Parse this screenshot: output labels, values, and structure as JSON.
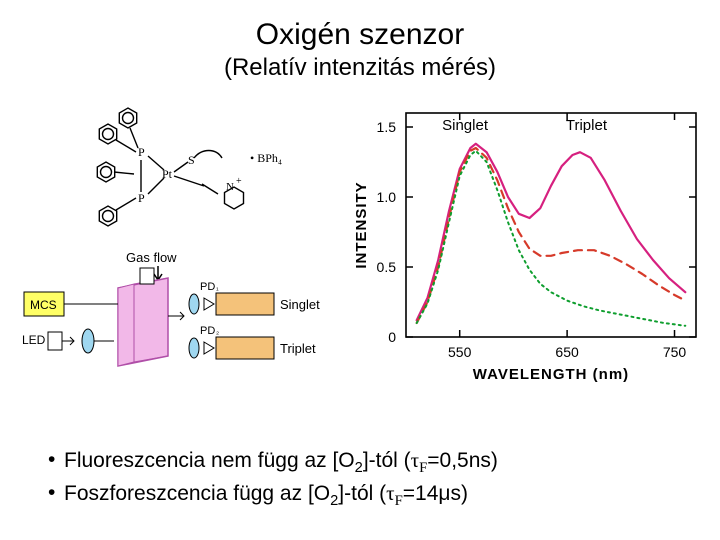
{
  "header": {
    "title": "Oxigén szenzor",
    "subtitle": "(Relatív intenzitás mérés)"
  },
  "molecule": {
    "counterion": "BPh₄",
    "metal": "Pt",
    "ligands": [
      "Ph",
      "Ph",
      "Ph",
      "Ph"
    ],
    "bridge_atoms": [
      "P",
      "P",
      "S"
    ],
    "pyridyl": "N⁺",
    "stroke": "#000000"
  },
  "setup": {
    "gas_flow_label": "Gas flow",
    "mcs_label": "MCS",
    "led_label": "LED",
    "pd1_label": "PD₁",
    "pd2_label": "PD₂",
    "channel1_label": "Singlet",
    "channel2_label": "Triplet",
    "mcs_fill": "#ffff66",
    "cell_fill": "#f2b8e8",
    "cell_stroke": "#b04fa8",
    "detector_fill": "#f4c27a",
    "optic_fill": "#9fd7f0",
    "led_fill": "#ffffff",
    "stroke": "#000000"
  },
  "chart": {
    "type": "line",
    "title_singlet": "Singlet",
    "title_triplet": "Triplet",
    "xlabel": "WAVELENGTH (nm)",
    "ylabel": "INTENSITY",
    "xlim": [
      500,
      770
    ],
    "ylim": [
      0,
      1.6
    ],
    "xticks": [
      550,
      650,
      750
    ],
    "yticks": [
      0,
      0.5,
      1.0,
      1.5
    ],
    "axis_color": "#000000",
    "background": "#ffffff",
    "tick_fontsize": 14,
    "label_fontsize": 15,
    "annotation_fontsize": 15,
    "series": [
      {
        "name": "solid",
        "color": "#d6207f",
        "width": 2.2,
        "dash": "none",
        "points": [
          [
            510,
            0.12
          ],
          [
            520,
            0.28
          ],
          [
            530,
            0.55
          ],
          [
            540,
            0.9
          ],
          [
            550,
            1.2
          ],
          [
            560,
            1.35
          ],
          [
            565,
            1.38
          ],
          [
            575,
            1.32
          ],
          [
            585,
            1.18
          ],
          [
            595,
            1.0
          ],
          [
            605,
            0.88
          ],
          [
            615,
            0.85
          ],
          [
            625,
            0.92
          ],
          [
            635,
            1.08
          ],
          [
            645,
            1.22
          ],
          [
            655,
            1.3
          ],
          [
            662,
            1.32
          ],
          [
            672,
            1.28
          ],
          [
            685,
            1.12
          ],
          [
            700,
            0.9
          ],
          [
            715,
            0.7
          ],
          [
            730,
            0.55
          ],
          [
            745,
            0.42
          ],
          [
            760,
            0.32
          ]
        ]
      },
      {
        "name": "dashed",
        "color": "#d63a2a",
        "width": 2.2,
        "dash": "8 6",
        "points": [
          [
            510,
            0.1
          ],
          [
            520,
            0.25
          ],
          [
            530,
            0.5
          ],
          [
            540,
            0.85
          ],
          [
            550,
            1.18
          ],
          [
            560,
            1.33
          ],
          [
            565,
            1.35
          ],
          [
            575,
            1.28
          ],
          [
            585,
            1.12
          ],
          [
            595,
            0.92
          ],
          [
            605,
            0.75
          ],
          [
            615,
            0.63
          ],
          [
            625,
            0.58
          ],
          [
            635,
            0.58
          ],
          [
            645,
            0.6
          ],
          [
            660,
            0.62
          ],
          [
            675,
            0.62
          ],
          [
            690,
            0.58
          ],
          [
            705,
            0.52
          ],
          [
            720,
            0.45
          ],
          [
            735,
            0.37
          ],
          [
            750,
            0.3
          ],
          [
            760,
            0.26
          ]
        ]
      },
      {
        "name": "dotted",
        "color": "#0e9e2e",
        "width": 2.0,
        "dash": "2 4",
        "points": [
          [
            510,
            0.1
          ],
          [
            520,
            0.24
          ],
          [
            530,
            0.48
          ],
          [
            540,
            0.82
          ],
          [
            550,
            1.15
          ],
          [
            560,
            1.3
          ],
          [
            565,
            1.33
          ],
          [
            575,
            1.25
          ],
          [
            585,
            1.05
          ],
          [
            595,
            0.82
          ],
          [
            605,
            0.62
          ],
          [
            615,
            0.48
          ],
          [
            625,
            0.38
          ],
          [
            635,
            0.32
          ],
          [
            650,
            0.26
          ],
          [
            665,
            0.22
          ],
          [
            680,
            0.19
          ],
          [
            700,
            0.16
          ],
          [
            720,
            0.13
          ],
          [
            740,
            0.1
          ],
          [
            760,
            0.08
          ]
        ]
      }
    ]
  },
  "bullets": {
    "b1_pre": "Fluoreszcencia nem függ az [O",
    "b1_sub": "2",
    "b1_mid": "]-tól (",
    "b1_tau": "τ",
    "b1_tausub": "F",
    "b1_post": "=0,5ns)",
    "b2_pre": "Foszforeszcencia függ az [O",
    "b2_sub": "2",
    "b2_mid": "]-tól (",
    "b2_tau": "τ",
    "b2_tausub": "F",
    "b2_post": "=14μs)"
  }
}
